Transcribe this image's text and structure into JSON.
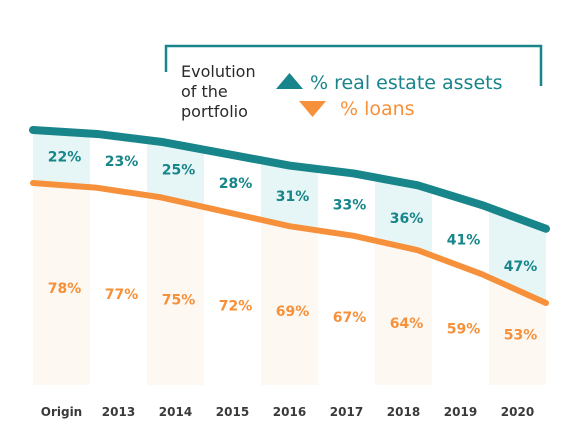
{
  "legend": {
    "title_lines": [
      "Evolution",
      "of the",
      "portfolio"
    ],
    "series_1": "% real estate assets",
    "series_2": "% loans"
  },
  "colors": {
    "real_estate": "#17858a",
    "real_estate_fill": "#e6f6f6",
    "loans": "#f7903a",
    "loans_fill": "#fdf8f2"
  },
  "chart_data": {
    "type": "area",
    "categories": [
      "Origin",
      "2013",
      "2014",
      "2015",
      "2016",
      "2017",
      "2018",
      "2019",
      "2020"
    ],
    "series": [
      {
        "name": "% real estate assets",
        "values": [
          22,
          23,
          25,
          28,
          31,
          33,
          36,
          41,
          47
        ],
        "labels": [
          "22%",
          "23%",
          "25%",
          "28%",
          "31%",
          "33%",
          "36%",
          "41%",
          "47%"
        ]
      },
      {
        "name": "% loans",
        "values": [
          78,
          77,
          75,
          72,
          69,
          67,
          64,
          59,
          53
        ],
        "labels": [
          "78%",
          "77%",
          "75%",
          "72%",
          "69%",
          "67%",
          "64%",
          "59%",
          "53%"
        ]
      }
    ],
    "ylim": [
      0,
      100
    ],
    "legend_position": "top-right",
    "grid": false
  }
}
